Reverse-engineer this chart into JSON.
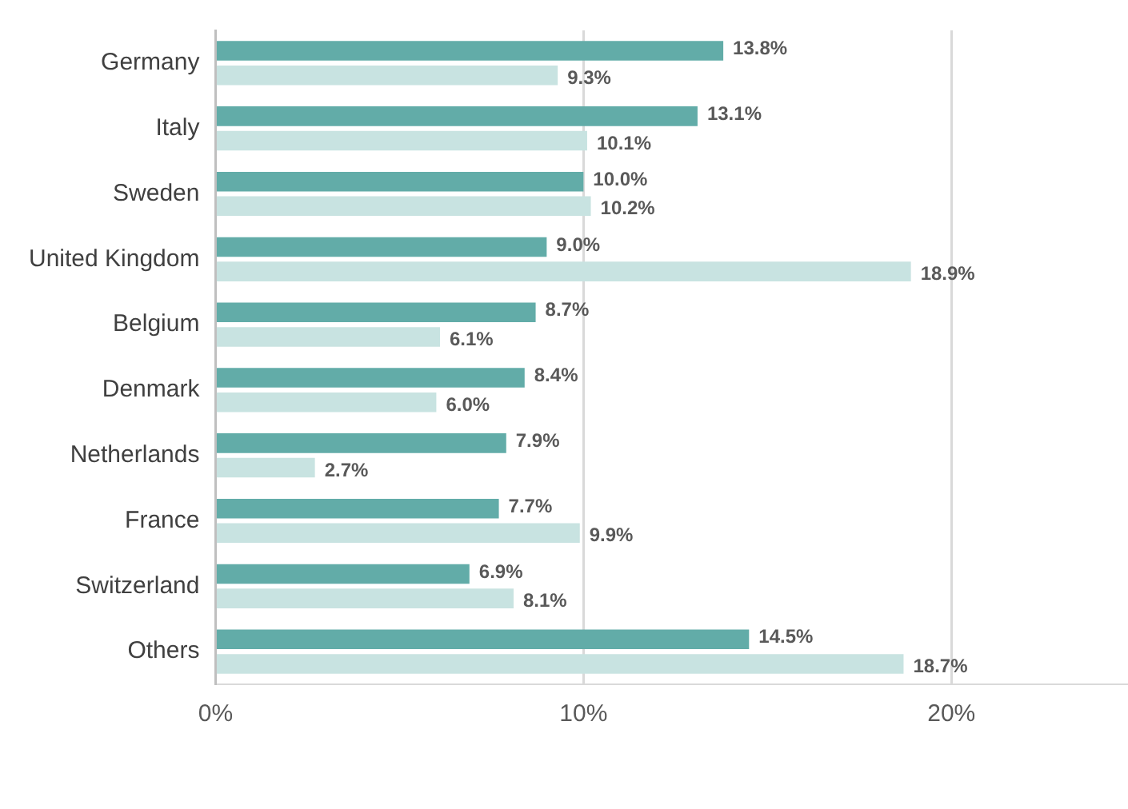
{
  "chart_data": {
    "type": "bar",
    "orientation": "horizontal",
    "categories": [
      "Germany",
      "Italy",
      "Sweden",
      "United Kingdom",
      "Belgium",
      "Denmark",
      "Netherlands",
      "France",
      "Switzerland",
      "Others"
    ],
    "series": [
      {
        "color": "#62aca8",
        "values": [
          13.8,
          13.1,
          10.0,
          9.0,
          8.7,
          8.4,
          7.9,
          7.7,
          6.9,
          14.5
        ],
        "value_labels": [
          "13.8%",
          "13.1%",
          "10.0%",
          "9.0%",
          "8.7%",
          "8.4%",
          "7.9%",
          "7.7%",
          "6.9%",
          "14.5%"
        ]
      },
      {
        "color": "#c8e3e1",
        "values": [
          9.3,
          10.1,
          10.2,
          18.9,
          6.1,
          6.0,
          2.7,
          9.9,
          8.1,
          18.7
        ],
        "value_labels": [
          "9.3%",
          "10.1%",
          "10.2%",
          "18.9%",
          "6.1%",
          "6.0%",
          "2.7%",
          "9.9%",
          "8.1%",
          "18.7%"
        ]
      }
    ],
    "xlim": [
      0,
      24.8
    ],
    "xticks": [
      {
        "value": 0,
        "label": "0%"
      },
      {
        "value": 10,
        "label": "10%"
      },
      {
        "value": 20,
        "label": "20%"
      }
    ],
    "grid": "x",
    "legend": false
  }
}
